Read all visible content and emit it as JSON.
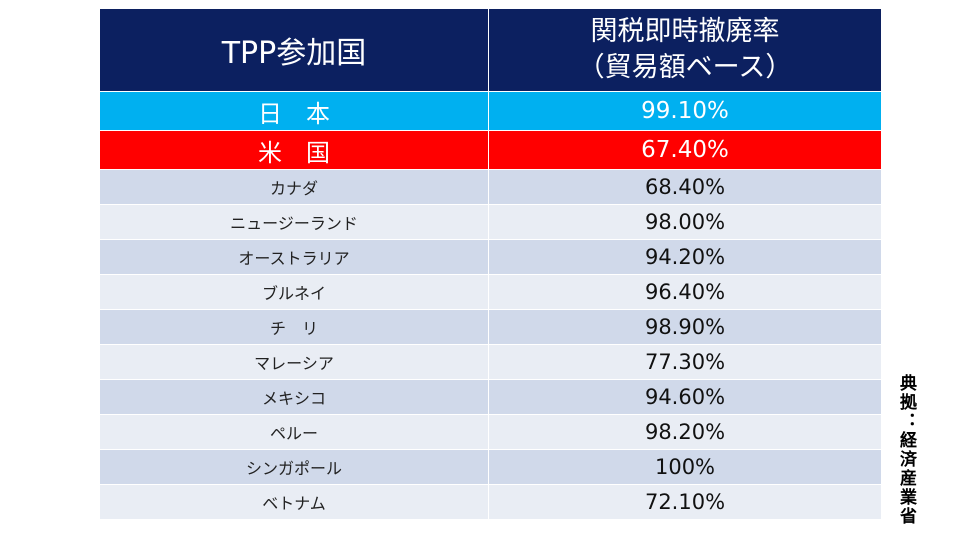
{
  "chart_data": {
    "type": "table",
    "columns": [
      "TPP参加国",
      "関税即時撤廃率（貿易額ベース）"
    ],
    "header": {
      "col1": "TPP参加国",
      "col2_line1": "関税即時撤廃率",
      "col2_line2": "（貿易額ベース）"
    },
    "highlight_rows": [
      {
        "country": "日　本",
        "rate": "99.10%",
        "color": "#00b0f0"
      },
      {
        "country": "米　国",
        "rate": "67.40%",
        "color": "#ff0000"
      }
    ],
    "rows": [
      {
        "country": "カナダ",
        "rate": "68.40%"
      },
      {
        "country": "ニュージーランド",
        "rate": "98.00%"
      },
      {
        "country": "オーストラリア",
        "rate": "94.20%"
      },
      {
        "country": "ブルネイ",
        "rate": "96.40%"
      },
      {
        "country": "チ　リ",
        "rate": "98.90%"
      },
      {
        "country": "マレーシア",
        "rate": "77.30%"
      },
      {
        "country": "メキシコ",
        "rate": "94.60%"
      },
      {
        "country": "ペルー",
        "rate": "98.20%"
      },
      {
        "country": "シンガポール",
        "rate": "100%"
      },
      {
        "country": "ベトナム",
        "rate": "72.10%"
      }
    ]
  },
  "source_note": "典拠：経済産業省",
  "colors": {
    "header_bg": "#0c2060",
    "row_odd": "#d0d9ea",
    "row_even": "#e9edf4"
  }
}
